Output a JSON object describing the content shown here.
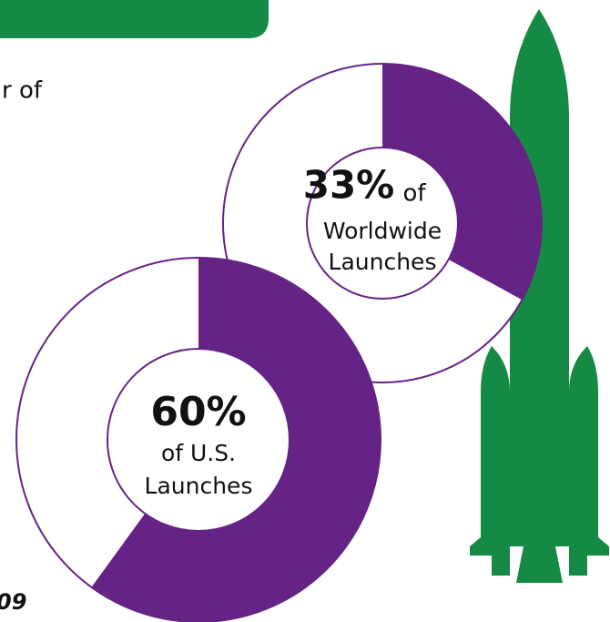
{
  "chart_data": [
    {
      "type": "donut",
      "values": [
        33
      ],
      "value_labels": [
        "33%"
      ],
      "label_lines": [
        "of",
        "Worldwide",
        "Launches"
      ],
      "color": "#652385"
    },
    {
      "type": "donut",
      "values": [
        60
      ],
      "value_labels": [
        "60%"
      ],
      "label_lines": [
        "of U.S.",
        "Launches"
      ],
      "color": "#652385"
    }
  ],
  "fragments": [
    "r of",
    "09"
  ]
}
